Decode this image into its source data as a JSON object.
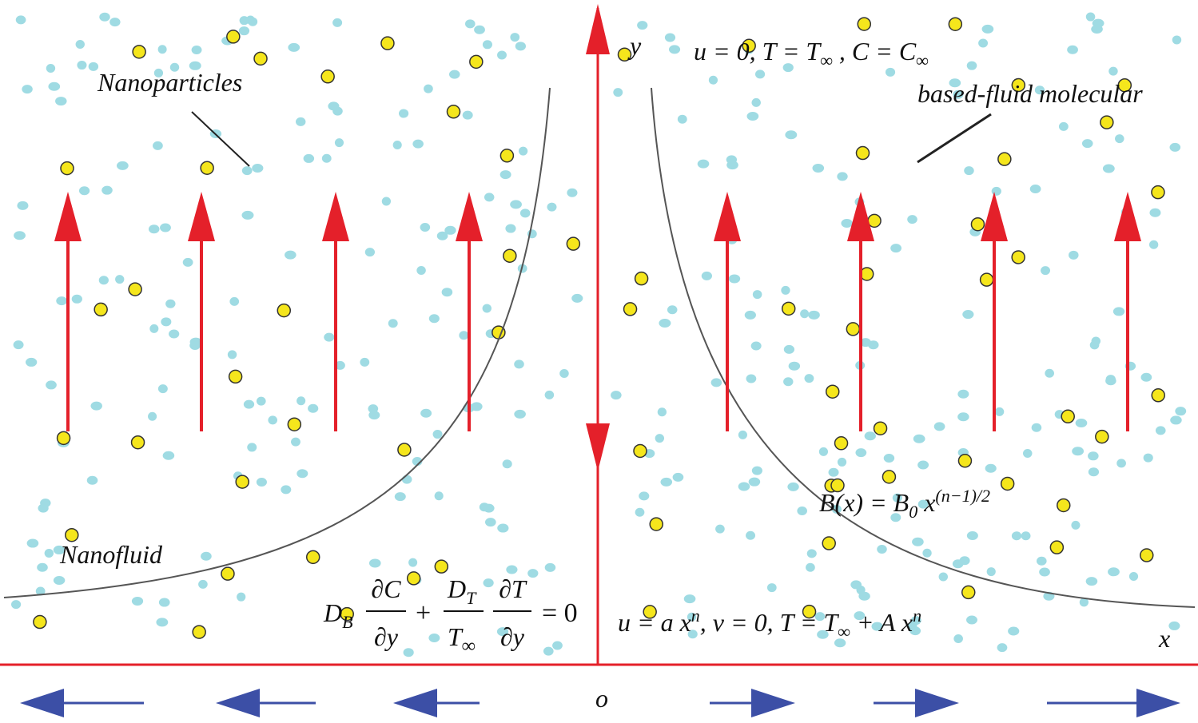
{
  "axes": {
    "y": "y",
    "x": "x",
    "origin": "o"
  },
  "labels": {
    "nanoparticles": "Nanoparticles",
    "base_fluid": "based-fluid molecular",
    "nanofluid": "Nanofluid"
  },
  "top_condition": {
    "segments": [
      {
        "text": "u = 0, T = T"
      },
      {
        "text": "∞",
        "sub": true
      },
      {
        "text": " , C = C"
      },
      {
        "text": "∞",
        "sub": true
      }
    ]
  },
  "magnetic_field": {
    "segments": [
      {
        "text": "B(x) = B"
      },
      {
        "text": "0",
        "sub": true
      },
      {
        "text": " x"
      },
      {
        "text": "(n−1)/2",
        "sup": true
      }
    ]
  },
  "bottom_condition": {
    "segments": [
      {
        "text": "u = a x"
      },
      {
        "text": "n",
        "sup": true
      },
      {
        "text": ", v = 0,  T = T"
      },
      {
        "text": "∞",
        "sub": true
      },
      {
        "text": " + A x"
      },
      {
        "text": "n",
        "sup": true
      }
    ]
  },
  "flux_equation": {
    "d_b": "D",
    "d_b_sub": "B",
    "dc": "∂C",
    "dy1": "∂y",
    "plus": "+",
    "d_t": "D",
    "d_t_sub": "T",
    "t_inf": "T",
    "t_inf_sub": "∞",
    "dt": "∂T",
    "dy2": "∂y",
    "equals": "= 0"
  }
}
